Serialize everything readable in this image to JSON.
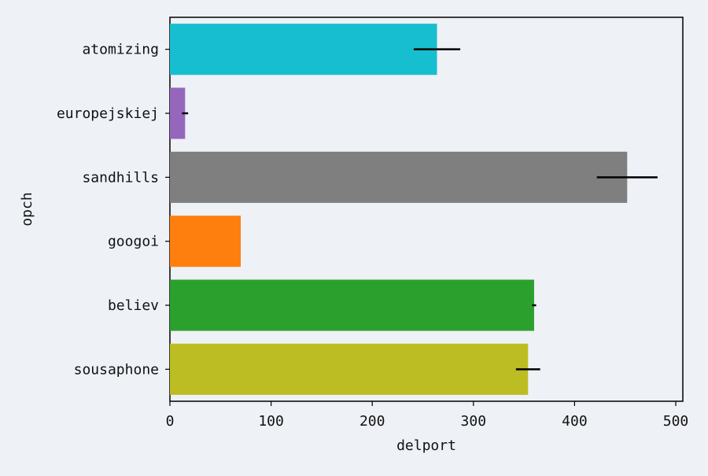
{
  "chart_data": {
    "type": "bar",
    "orientation": "horizontal",
    "title": "",
    "xlabel": "delport",
    "ylabel": "opch",
    "categories": [
      "atomizing",
      "europejskiej",
      "sandhills",
      "googoi",
      "believ",
      "sousaphone"
    ],
    "values": [
      264,
      15,
      452,
      70,
      360,
      354
    ],
    "errors": [
      23,
      3,
      30,
      0,
      2,
      12
    ],
    "colors": [
      "#17becf",
      "#9467bd",
      "#7f7f7f",
      "#ff7f0e",
      "#2ca02c",
      "#bcbd22"
    ],
    "error_color": "#000000",
    "xlim": [
      0,
      507
    ],
    "xticks": [
      0,
      100,
      200,
      300,
      400,
      500
    ],
    "grid": false,
    "background": "#eef1f6"
  }
}
